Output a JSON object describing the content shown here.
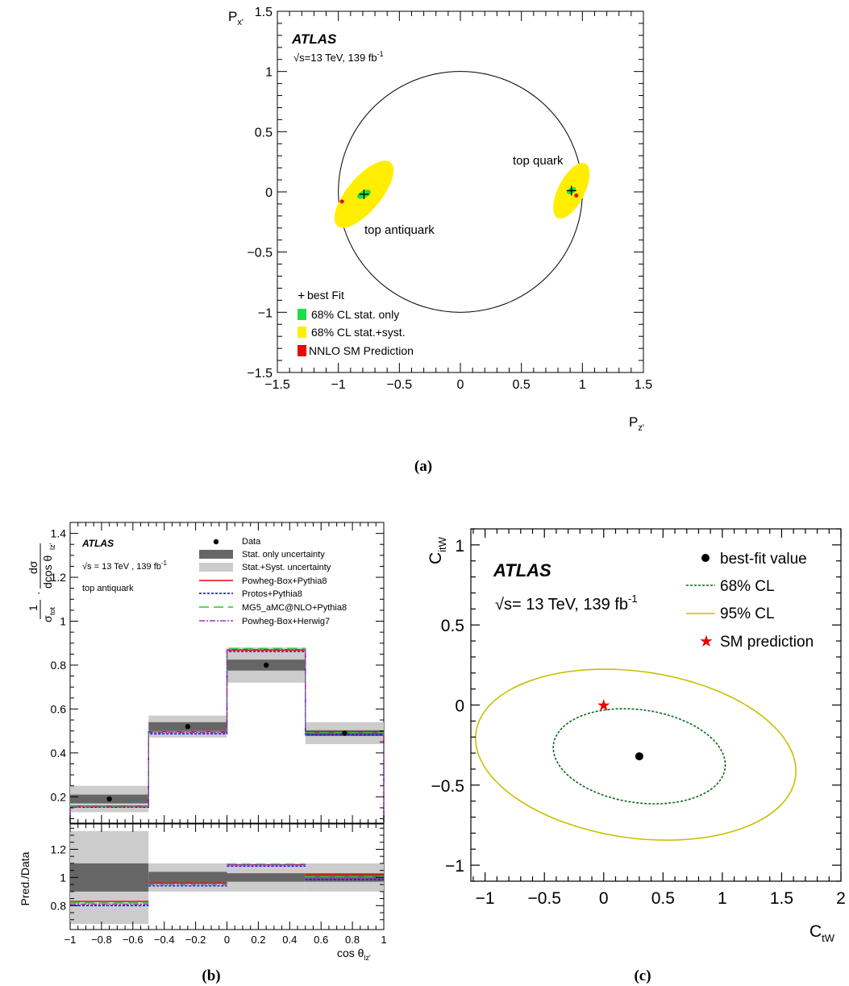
{
  "captions": {
    "a": "(a)",
    "b": "(b)",
    "c": "(c)"
  },
  "panel_a": {
    "atlas": "ATLAS",
    "lumi_pre": "√s=13 TeV, 139 fb",
    "lumi_sup": "-1",
    "ylabel_main": "P",
    "ylabel_sub": "x'",
    "xlabel_main": "P",
    "xlabel_sub": "z'",
    "annotations": {
      "top": "top quark",
      "anti": "top antiquark"
    },
    "legend": {
      "best": "best Fit",
      "stat": "68% CL stat. only",
      "syst": "68% CL stat.+syst.",
      "sm": "NNLO SM Prediction"
    },
    "xticks": [
      "−1.5",
      "−1",
      "−0.5",
      "0",
      "0.5",
      "1",
      "1.5"
    ],
    "yticks": [
      "−1.5",
      "−1",
      "−0.5",
      "0",
      "0.5",
      "1",
      "1.5"
    ]
  },
  "panel_b": {
    "atlas": "ATLAS",
    "lumi_pre": "√s = 13 TeV , 139 fb",
    "lumi_sup": "-1",
    "sample": "top antiquark",
    "ylabel_top": "1/σtot · dσ/dcos θlz'",
    "ylabel_bottom": "Pred./Data",
    "xlabel": "cos θ",
    "xlabel_sub": "lz'",
    "legend": {
      "data": "Data",
      "stat": "Stat. only uncertainty",
      "syst": "Stat.+Syst. uncertainty",
      "m1": "Powheg-Box+Pythia8",
      "m2": "Protos+Pythia8",
      "m3": "MG5_aMC@NLO+Pythia8",
      "m4": "Powheg-Box+Herwig7"
    },
    "xticks": [
      "−1",
      "−0.8",
      "−0.6",
      "−0.4",
      "−0.2",
      "0",
      "0.2",
      "0.4",
      "0.6",
      "0.8",
      "1"
    ],
    "yticks": [
      "0.2",
      "0.4",
      "0.6",
      "0.8",
      "1",
      "1.2",
      "1.4"
    ],
    "ratio_ticks": [
      "0.8",
      "1",
      "1.2"
    ]
  },
  "panel_c": {
    "atlas": "ATLAS",
    "lumi_pre": "√s= 13 TeV, 139 fb",
    "lumi_sup": "-1",
    "ylabel_main": "C",
    "ylabel_sub": "itW",
    "xlabel_main": "C",
    "xlabel_sub": "tW",
    "legend": {
      "best": "best-fit value",
      "cl68": "68% CL",
      "cl95": "95% CL",
      "sm": "SM prediction"
    },
    "xticks": [
      "−1",
      "−0.5",
      "0",
      "0.5",
      "1",
      "1.5",
      "2"
    ],
    "yticks": [
      "−1",
      "−0.5",
      "0",
      "0.5",
      "1"
    ]
  },
  "colors": {
    "stat68": "#22dd44",
    "syst68": "#ffee00",
    "sm_red": "#ee0000",
    "band_dark": "#666666",
    "band_light": "#cccccc",
    "powheg_pythia": "#ee0000",
    "protos": "#0000dd",
    "mg5": "#22cc22",
    "herwig": "#9933cc",
    "cl68": "#0b6b1a",
    "cl95": "#c9c000"
  },
  "chart_data": [
    {
      "id": "a",
      "type": "scatter",
      "xlabel": "P_z'",
      "ylabel": "P_x'",
      "xlim": [
        -1.5,
        1.5
      ],
      "ylim": [
        -1.5,
        1.5
      ],
      "unit_circle_radius": 1,
      "points": [
        {
          "name": "top quark",
          "best_fit": [
            0.91,
            0.01
          ],
          "sm": [
            0.95,
            -0.03
          ],
          "cl68_syst": {
            "rx": 0.25,
            "ry": 0.11,
            "angle_deg": 63
          },
          "cl68_stat": {
            "rx": 0.04,
            "ry": 0.025,
            "angle_deg": 30
          }
        },
        {
          "name": "top antiquark",
          "best_fit": [
            -0.79,
            -0.02
          ],
          "sm": [
            -0.97,
            -0.08
          ],
          "cl68_syst": {
            "rx": 0.34,
            "ry": 0.14,
            "angle_deg": 50
          },
          "cl68_stat": {
            "rx": 0.06,
            "ry": 0.03,
            "angle_deg": 25
          }
        }
      ]
    },
    {
      "id": "b",
      "type": "bar",
      "bins": [
        [
          -1,
          -0.5
        ],
        [
          -0.5,
          0
        ],
        [
          0,
          0.5
        ],
        [
          0.5,
          1
        ]
      ],
      "data": [
        0.19,
        0.52,
        0.8,
        0.49
      ],
      "data_points_x": [
        -0.75,
        -0.25,
        0.25,
        0.75
      ],
      "stat_unc": [
        0.02,
        0.02,
        0.025,
        0.013
      ],
      "total_unc": [
        0.06,
        0.05,
        0.08,
        0.05
      ],
      "models": [
        {
          "name": "Powheg-Box+Pythia8",
          "values": [
            0.158,
            0.497,
            0.868,
            0.497
          ]
        },
        {
          "name": "Protos+Pythia8",
          "values": [
            0.152,
            0.487,
            0.862,
            0.483
          ]
        },
        {
          "name": "MG5_aMC@NLO+Pythia8",
          "values": [
            0.156,
            0.497,
            0.876,
            0.493
          ]
        },
        {
          "name": "Powheg-Box+Herwig7",
          "values": [
            0.154,
            0.493,
            0.871,
            0.488
          ]
        }
      ],
      "ylim": [
        0.08,
        1.45
      ],
      "ratio": {
        "ylim": [
          0.63,
          1.38
        ],
        "stat_unc": [
          0.1,
          0.04,
          0.03,
          0.03
        ],
        "total_unc": [
          0.33,
          0.1,
          0.1,
          0.1
        ],
        "models": [
          {
            "name": "Powheg-Box+Pythia8",
            "values": [
              0.83,
              0.96,
              1.09,
              1.02
            ]
          },
          {
            "name": "Protos+Pythia8",
            "values": [
              0.8,
              0.94,
              1.08,
              0.985
            ]
          },
          {
            "name": "MG5_aMC@NLO+Pythia8",
            "values": [
              0.82,
              0.955,
              1.095,
              1.005
            ]
          },
          {
            "name": "Powheg-Box+Herwig7",
            "values": [
              0.81,
              0.95,
              1.09,
              0.995
            ]
          }
        ]
      }
    },
    {
      "id": "c",
      "type": "scatter",
      "xlim": [
        -1.12,
        2.0
      ],
      "ylim": [
        -1.1,
        1.1
      ],
      "best_fit": [
        0.3,
        -0.32
      ],
      "sm": [
        0.0,
        0.0
      ],
      "cl68": {
        "center": [
          0.3,
          -0.32
        ],
        "rx": 0.73,
        "ry": 0.29,
        "angle_deg": -8
      },
      "cl95": {
        "center": [
          0.27,
          -0.31
        ],
        "rx": 1.36,
        "ry": 0.52,
        "angle_deg": -8
      }
    }
  ]
}
